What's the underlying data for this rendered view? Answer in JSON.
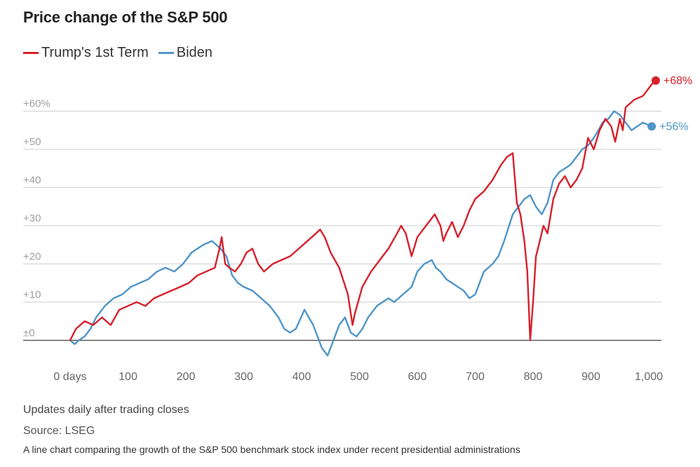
{
  "header": {
    "title": "Price change of the S&P 500"
  },
  "footer": {
    "note": "Updates daily after trading closes",
    "source": "Source: LSEG",
    "caption": "A line chart comparing the growth of the S&P 500 benchmark stock index under recent presidential administrations"
  },
  "chart_data": {
    "type": "line",
    "title": "Price change of the S&P 500",
    "xlabel": "",
    "ylabel": "",
    "xlim": [
      0,
      1000
    ],
    "ylim": [
      -6,
      70
    ],
    "x_ticks": [
      0,
      100,
      200,
      300,
      400,
      500,
      600,
      700,
      800,
      900,
      1000
    ],
    "x_tick_labels": [
      "0 days",
      "100",
      "200",
      "300",
      "400",
      "500",
      "600",
      "700",
      "800",
      "900",
      "1,000"
    ],
    "y_ticks": [
      0,
      10,
      20,
      30,
      40,
      50,
      60
    ],
    "y_tick_labels": [
      "±0",
      "+10",
      "+20",
      "+30",
      "+40",
      "+50",
      "+60%"
    ],
    "grid": true,
    "legend_position": "top-left",
    "series": [
      {
        "name": "Trump's 1st Term",
        "color": "#d7202c",
        "end_label": "+68%",
        "x": [
          0,
          10,
          25,
          40,
          55,
          70,
          85,
          100,
          115,
          130,
          145,
          160,
          175,
          190,
          205,
          220,
          235,
          250,
          258,
          262,
          268,
          275,
          285,
          295,
          305,
          315,
          325,
          335,
          350,
          365,
          380,
          395,
          410,
          425,
          432,
          440,
          450,
          465,
          480,
          488,
          492,
          505,
          520,
          535,
          550,
          565,
          572,
          580,
          590,
          600,
          615,
          630,
          640,
          645,
          650,
          660,
          670,
          680,
          690,
          700,
          715,
          730,
          745,
          755,
          765,
          772,
          778,
          785,
          790,
          795,
          800,
          805,
          810,
          818,
          825,
          835,
          845,
          855,
          865,
          875,
          885,
          895,
          905,
          915,
          925,
          935,
          942,
          950,
          955,
          960,
          975,
          990,
          1005,
          1012
        ],
        "y": [
          0,
          3,
          5,
          4,
          6,
          4,
          8,
          9,
          10,
          9,
          11,
          12,
          13,
          14,
          15,
          17,
          18,
          19,
          24,
          27,
          20,
          19,
          18,
          20,
          23,
          24,
          20,
          18,
          20,
          21,
          22,
          24,
          26,
          28,
          29,
          27,
          23,
          19,
          12,
          4,
          7,
          14,
          18,
          21,
          24,
          28,
          30,
          28,
          22,
          27,
          30,
          33,
          30,
          26,
          28,
          31,
          27,
          30,
          34,
          37,
          39,
          42,
          46,
          48,
          49,
          36,
          33,
          26,
          18,
          0,
          10,
          22,
          25,
          30,
          28,
          37,
          41,
          43,
          40,
          42,
          45,
          53,
          50,
          55,
          58,
          56,
          52,
          58,
          55,
          61,
          63,
          64,
          67,
          68
        ]
      },
      {
        "name": "Biden",
        "color": "#4f95c8",
        "end_label": "+56%",
        "x": [
          0,
          8,
          15,
          25,
          35,
          45,
          60,
          75,
          90,
          105,
          120,
          135,
          150,
          165,
          180,
          195,
          210,
          220,
          230,
          245,
          260,
          270,
          280,
          290,
          300,
          315,
          330,
          345,
          360,
          370,
          380,
          390,
          405,
          420,
          430,
          435,
          445,
          455,
          465,
          475,
          485,
          495,
          505,
          515,
          530,
          540,
          550,
          560,
          575,
          590,
          600,
          612,
          625,
          632,
          640,
          650,
          660,
          670,
          680,
          690,
          700,
          715,
          730,
          740,
          750,
          765,
          775,
          785,
          795,
          805,
          815,
          825,
          835,
          845,
          855,
          865,
          875,
          885,
          895,
          905,
          913,
          920,
          930,
          940,
          950,
          960,
          970,
          980,
          990,
          1005
        ],
        "y": [
          0,
          -1,
          0,
          1,
          3,
          6,
          9,
          11,
          12,
          14,
          15,
          16,
          18,
          19,
          18,
          20,
          23,
          24,
          25,
          26,
          24,
          22,
          17,
          15,
          14,
          13,
          11,
          9,
          6,
          3,
          2,
          3,
          8,
          4,
          0,
          -2,
          -4,
          0,
          4,
          6,
          2,
          1,
          3,
          6,
          9,
          10,
          11,
          10,
          12,
          14,
          18,
          20,
          21,
          19,
          18,
          16,
          15,
          14,
          13,
          11,
          12,
          18,
          20,
          22,
          26,
          33,
          35,
          37,
          38,
          35,
          33,
          36,
          42,
          44,
          45,
          46,
          48,
          50,
          51,
          53,
          55,
          57,
          58,
          60,
          59,
          57,
          55,
          56,
          57,
          56
        ]
      }
    ]
  }
}
